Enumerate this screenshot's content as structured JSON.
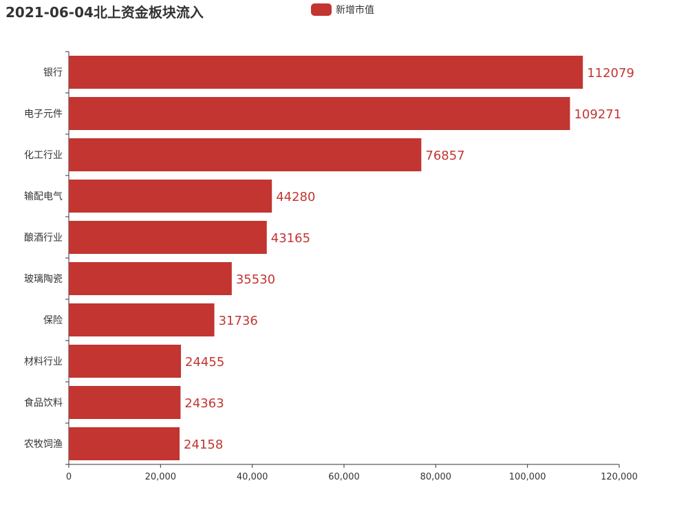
{
  "chart_data": {
    "type": "bar",
    "orientation": "horizontal",
    "title": "2021-06-04北上资金板块流入",
    "categories": [
      "银行",
      "电子元件",
      "化工行业",
      "输配电气",
      "酿酒行业",
      "玻璃陶瓷",
      "保险",
      "材料行业",
      "食品饮料",
      "农牧饲渔"
    ],
    "series": [
      {
        "name": "新增市值",
        "values": [
          112079,
          109271,
          76857,
          44280,
          43165,
          35530,
          31736,
          24455,
          24363,
          24158
        ],
        "color": "#c23531"
      }
    ],
    "xlim": [
      0,
      120000
    ],
    "xticks": [
      "0",
      "20,000",
      "40,000",
      "60,000",
      "80,000",
      "100,000",
      "120,000"
    ],
    "xtick_values": [
      0,
      20000,
      40000,
      60000,
      80000,
      100000,
      120000
    ],
    "legend_position": "top-center",
    "grid": false
  }
}
